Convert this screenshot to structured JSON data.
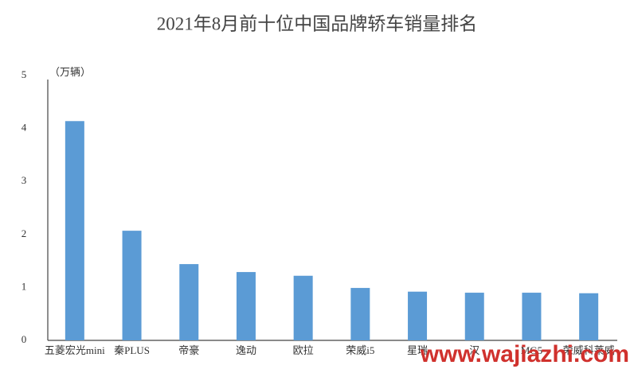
{
  "chart_data": {
    "type": "bar",
    "title": "2021年8月前十位中国品牌轿车销量排名",
    "y_label": "（万辆）",
    "categories": [
      "五菱宏光mini",
      "秦PLUS",
      "帝豪",
      "逸动",
      "欧拉",
      "荣威i5",
      "星瑞",
      "汉",
      "MG5",
      "荣威科莱威"
    ],
    "values": [
      4.14,
      2.07,
      1.44,
      1.29,
      1.22,
      0.99,
      0.92,
      0.9,
      0.9,
      0.89
    ],
    "color": "#5b9bd5",
    "ylim": [
      0,
      5
    ],
    "yticks": [
      0,
      1,
      2,
      3,
      4,
      5
    ],
    "grid": false,
    "watermark": "www.wajiazhi.com"
  }
}
